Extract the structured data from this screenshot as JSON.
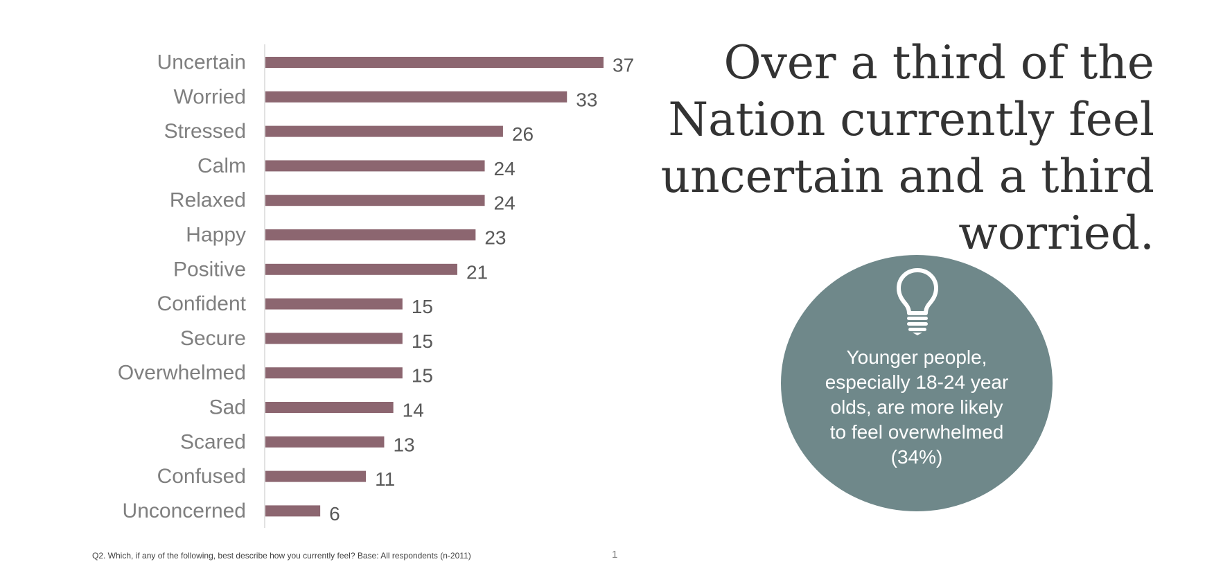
{
  "chart_data": {
    "type": "bar",
    "orientation": "horizontal",
    "categories": [
      "Uncertain",
      "Worried",
      "Stressed",
      "Calm",
      "Relaxed",
      "Happy",
      "Positive",
      "Confident",
      "Secure",
      "Overwhelmed",
      "Sad",
      "Scared",
      "Confused",
      "Unconcerned"
    ],
    "values": [
      37,
      33,
      26,
      24,
      24,
      23,
      21,
      15,
      15,
      15,
      14,
      13,
      11,
      6
    ],
    "xlim": [
      0,
      37
    ],
    "grid": false,
    "legend": "none",
    "bar_color": "#8c6670",
    "axis_color": "#d9d9d9",
    "data_labels": true
  },
  "headline": {
    "text": "Over a third of the Nation currently feel uncertain and a third worried."
  },
  "insight": {
    "icon": "lightbulb-icon",
    "text": "Younger people, especially 18-24 year olds, are more likely to feel overwhelmed (34%)",
    "color": "#6f888a"
  },
  "footnote": {
    "text": "Q2. Which, if any of the following, best describe how you currently feel? Base: All respondents (n-2011)"
  },
  "page_number": "1"
}
